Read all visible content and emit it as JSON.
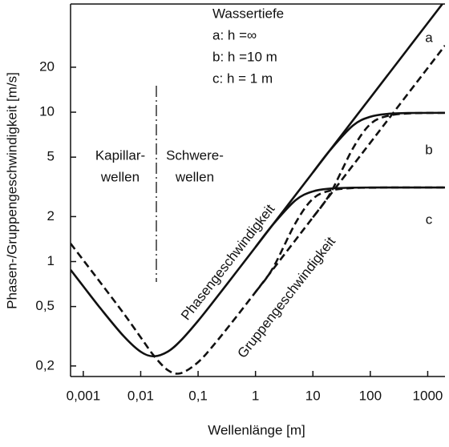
{
  "chart_data": {
    "type": "line",
    "x_label": "Wellenlänge [m]",
    "y_label": "Phasen-/Gruppengeschwindigkeit [m/s]",
    "xscale": "log",
    "yscale": "log",
    "xlim": [
      0.0006,
      2000
    ],
    "ylim": [
      0.17,
      53
    ],
    "xticks": [
      {
        "value": 0.001,
        "label": "0,001"
      },
      {
        "value": 0.01,
        "label": "0,01"
      },
      {
        "value": 0.1,
        "label": "0,1"
      },
      1,
      10,
      100,
      1000
    ],
    "yticks": [
      {
        "value": 0.2,
        "label": "0,2"
      },
      {
        "value": 0.5,
        "label": "0,5"
      },
      1,
      2,
      5,
      10,
      20
    ],
    "x": [
      0.0006,
      0.001,
      0.002,
      0.005,
      0.01,
      0.017,
      0.03,
      0.05,
      0.1,
      0.2,
      0.5,
      1,
      2,
      5,
      10,
      20,
      50,
      100,
      200,
      500,
      2000
    ],
    "series": [
      {
        "name": "a",
        "color": "#111111",
        "style": "solid",
        "values": [
          0.881,
          0.683,
          0.485,
          0.318,
          0.249,
          0.232,
          0.25,
          0.296,
          0.401,
          0.561,
          0.884,
          1.249,
          1.767,
          2.794,
          3.951,
          5.588,
          8.835,
          12.49,
          17.67,
          27.94,
          55.9
        ]
      },
      {
        "name": "b",
        "color": "#111111",
        "style": "solid",
        "values": [
          null,
          null,
          null,
          null,
          null,
          null,
          null,
          null,
          null,
          null,
          null,
          null,
          null,
          null,
          3.951,
          5.577,
          8.146,
          9.32,
          9.74,
          9.88,
          9.9
        ]
      },
      {
        "name": "c",
        "color": "#111111",
        "style": "solid",
        "values": [
          null,
          null,
          null,
          null,
          null,
          null,
          null,
          null,
          null,
          null,
          null,
          1.249,
          1.763,
          2.576,
          2.949,
          3.08,
          3.124,
          3.13,
          3.13,
          3.13,
          3.13
        ]
      },
      {
        "color": "#111111",
        "style": "dashed",
        "values": [
          1.321,
          1.022,
          0.721,
          0.452,
          0.311,
          0.234,
          0.187,
          0.179,
          0.212,
          0.285,
          0.443,
          0.625,
          0.884,
          1.397,
          1.976,
          2.794,
          4.418,
          6.245,
          8.835,
          13.97,
          27.95
        ]
      },
      {
        "color": "#111111",
        "style": "dashed",
        "values": [
          null,
          null,
          null,
          null,
          null,
          null,
          null,
          null,
          null,
          null,
          null,
          null,
          null,
          null,
          1.976,
          2.854,
          5.74,
          8.32,
          9.44,
          9.83,
          9.9
        ]
      },
      {
        "color": "#111111",
        "style": "dashed",
        "values": [
          null,
          null,
          null,
          null,
          null,
          null,
          null,
          null,
          null,
          null,
          null,
          0.625,
          0.902,
          1.816,
          2.633,
          2.985,
          3.108,
          3.12,
          3.13,
          3.13,
          3.13
        ]
      }
    ],
    "annotations": {
      "depth_title": "Wassertiefe",
      "depth_lines": [
        "a: h =∞",
        "b: h =10 m",
        "c: h = 1 m"
      ],
      "regions": [
        [
          "Kapillar-",
          "wellen"
        ],
        [
          "Schwere-",
          "wellen"
        ]
      ],
      "phase_label": "Phasengeschwindigkeit",
      "group_label": "Gruppengeschwindigkeit"
    }
  }
}
